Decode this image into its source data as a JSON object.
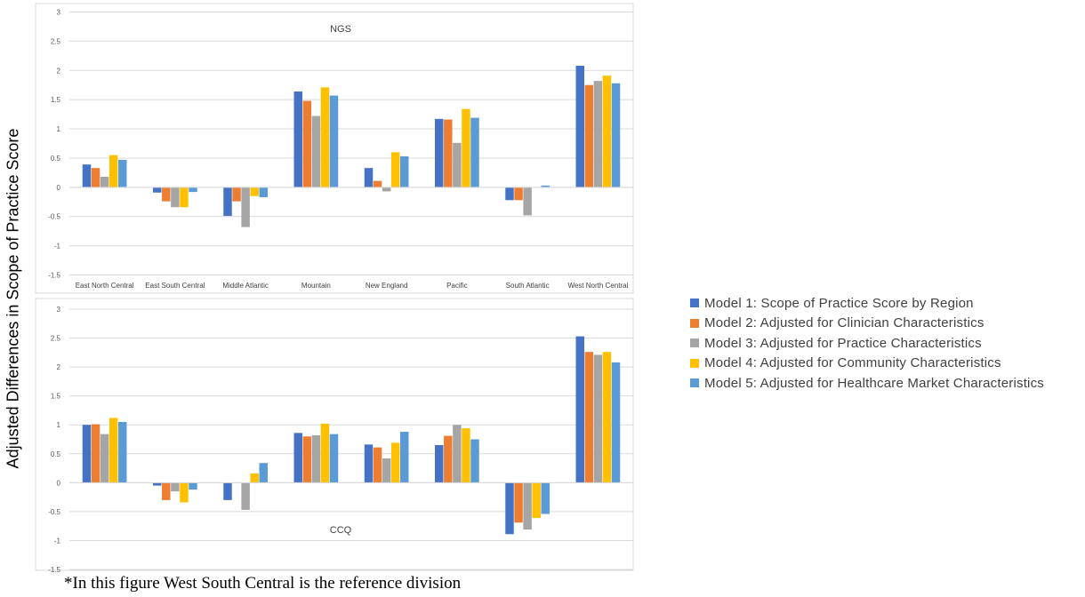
{
  "y_axis_title": "Adjusted Differences in Scope of Practice Score",
  "footnote": "*In this figure West South Central is the reference division",
  "legend": {
    "placement": "right",
    "items": [
      {
        "label": "Model 1: Scope of Practice Score by Region",
        "color": "#4472c4"
      },
      {
        "label": "Model 2: Adjusted for Clinician Characteristics",
        "color": "#ed7d31"
      },
      {
        "label": "Model 3: Adjusted for Practice Characteristics",
        "color": "#a5a5a5"
      },
      {
        "label": "Model 4: Adjusted for Community Characteristics",
        "color": "#ffc000"
      },
      {
        "label": "Model 5: Adjusted for Healthcare Market Characteristics",
        "color": "#5b9bd5"
      }
    ]
  },
  "chart_data": [
    {
      "type": "bar",
      "title": "NGS",
      "categories": [
        "East North Central",
        "East South Central",
        "Middle Atlantic",
        "Mountain",
        "New England",
        "Pacific",
        "South Atlantic",
        "West North Central"
      ],
      "ylim": [
        -1.5,
        3
      ],
      "yticks": [
        "3",
        "2.5",
        "2",
        "1.5",
        "1",
        "0.5",
        "0",
        "-0.5",
        "-1",
        "-1.5"
      ],
      "grid": true,
      "series": [
        {
          "name": "Model 1: Scope of Practice Score by Region",
          "values": [
            0.39,
            -0.09,
            -0.49,
            1.64,
            0.33,
            1.17,
            -0.22,
            2.08
          ]
        },
        {
          "name": "Model 2: Adjusted for Clinician Characteristics",
          "values": [
            0.33,
            -0.24,
            -0.24,
            1.48,
            0.11,
            1.16,
            -0.22,
            1.75
          ]
        },
        {
          "name": "Model 3: Adjusted for Practice Characteristics",
          "values": [
            0.18,
            -0.34,
            -0.68,
            1.22,
            -0.07,
            0.76,
            -0.48,
            1.82
          ]
        },
        {
          "name": "Model 4: Adjusted for Community Characteristics",
          "values": [
            0.55,
            -0.34,
            -0.15,
            1.71,
            0.6,
            1.34,
            0.0,
            1.91
          ]
        },
        {
          "name": "Model 5: Adjusted for Healthcare Market Characteristics",
          "values": [
            0.47,
            -0.08,
            -0.17,
            1.57,
            0.53,
            1.19,
            0.03,
            1.78
          ]
        }
      ]
    },
    {
      "type": "bar",
      "title": "CCQ",
      "categories": [
        "East North Central",
        "East South Central",
        "Middle Atlantic",
        "Mountain",
        "New England",
        "Pacific",
        "South Atlantic",
        "West North Central"
      ],
      "ylim": [
        -1.5,
        3
      ],
      "yticks": [
        "3",
        "2.5",
        "2",
        "1.5",
        "1",
        "0.5",
        "0",
        "-0.5",
        "-1",
        "-1.5"
      ],
      "grid": true,
      "series": [
        {
          "name": "Model 1: Scope of Practice Score by Region",
          "values": [
            1.0,
            -0.05,
            -0.3,
            0.86,
            0.66,
            0.65,
            -0.89,
            2.53
          ]
        },
        {
          "name": "Model 2: Adjusted for Clinician Characteristics",
          "values": [
            1.01,
            -0.3,
            0.0,
            0.8,
            0.61,
            0.81,
            -0.69,
            2.26
          ]
        },
        {
          "name": "Model 3: Adjusted for Practice Characteristics",
          "values": [
            0.84,
            -0.15,
            -0.47,
            0.82,
            0.42,
            1.0,
            -0.81,
            2.21
          ]
        },
        {
          "name": "Model 4: Adjusted for Community Characteristics",
          "values": [
            1.12,
            -0.34,
            0.16,
            1.02,
            0.69,
            0.94,
            -0.61,
            2.26
          ]
        },
        {
          "name": "Model 5: Adjusted for Healthcare Market Characteristics",
          "values": [
            1.05,
            -0.12,
            0.34,
            0.84,
            0.88,
            0.75,
            -0.54,
            2.08
          ]
        }
      ]
    }
  ]
}
